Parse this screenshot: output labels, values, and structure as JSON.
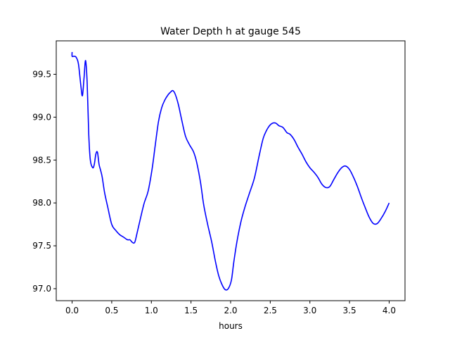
{
  "chart_data": {
    "type": "line",
    "title": "Water Depth h at gauge 545",
    "xlabel": "hours",
    "ylabel": "",
    "xlim": [
      -0.2,
      4.2
    ],
    "ylim": [
      96.86,
      99.89
    ],
    "xticks": [
      0.0,
      0.5,
      1.0,
      1.5,
      2.0,
      2.5,
      3.0,
      3.5,
      4.0
    ],
    "xtick_labels": [
      "0.0",
      "0.5",
      "1.0",
      "1.5",
      "2.0",
      "2.5",
      "3.0",
      "3.5",
      "4.0"
    ],
    "yticks": [
      97.0,
      97.5,
      98.0,
      98.5,
      99.0,
      99.5
    ],
    "ytick_labels": [
      "97.0",
      "97.5",
      "98.0",
      "98.5",
      "99.0",
      "99.5"
    ],
    "grid": false,
    "series": [
      {
        "color": "#0000ff",
        "x": [
          0.0,
          0.0,
          0.02,
          0.05,
          0.08,
          0.11,
          0.13,
          0.15,
          0.17,
          0.19,
          0.21,
          0.23,
          0.26,
          0.28,
          0.3,
          0.32,
          0.34,
          0.36,
          0.38,
          0.41,
          0.45,
          0.5,
          0.55,
          0.6,
          0.65,
          0.7,
          0.73,
          0.76,
          0.79,
          0.82,
          0.87,
          0.91,
          0.96,
          1.01,
          1.05,
          1.09,
          1.13,
          1.17,
          1.21,
          1.24,
          1.27,
          1.3,
          1.34,
          1.38,
          1.43,
          1.48,
          1.53,
          1.57,
          1.62,
          1.66,
          1.71,
          1.76,
          1.81,
          1.85,
          1.89,
          1.93,
          1.97,
          2.01,
          2.04,
          2.08,
          2.13,
          2.18,
          2.24,
          2.3,
          2.36,
          2.41,
          2.45,
          2.49,
          2.53,
          2.57,
          2.61,
          2.66,
          2.71,
          2.75,
          2.8,
          2.85,
          2.9,
          2.95,
          3.0,
          3.05,
          3.1,
          3.15,
          3.2,
          3.25,
          3.3,
          3.35,
          3.4,
          3.45,
          3.5,
          3.55,
          3.6,
          3.65,
          3.7,
          3.75,
          3.8,
          3.85,
          3.9,
          3.95,
          4.0
        ],
        "y": [
          99.76,
          99.71,
          99.71,
          99.7,
          99.62,
          99.37,
          99.25,
          99.45,
          99.66,
          99.4,
          98.8,
          98.5,
          98.41,
          98.45,
          98.57,
          98.59,
          98.45,
          98.38,
          98.3,
          98.12,
          97.95,
          97.75,
          97.68,
          97.63,
          97.6,
          97.57,
          97.57,
          97.54,
          97.54,
          97.65,
          97.85,
          98.0,
          98.14,
          98.4,
          98.68,
          98.95,
          99.11,
          99.2,
          99.26,
          99.29,
          99.31,
          99.27,
          99.15,
          98.98,
          98.78,
          98.68,
          98.6,
          98.48,
          98.24,
          97.98,
          97.75,
          97.55,
          97.31,
          97.15,
          97.05,
          96.99,
          97.0,
          97.1,
          97.31,
          97.55,
          97.78,
          97.95,
          98.12,
          98.29,
          98.55,
          98.75,
          98.84,
          98.9,
          98.93,
          98.93,
          98.9,
          98.88,
          98.82,
          98.8,
          98.74,
          98.65,
          98.57,
          98.48,
          98.41,
          98.36,
          98.3,
          98.22,
          98.18,
          98.19,
          98.27,
          98.35,
          98.41,
          98.43,
          98.39,
          98.3,
          98.19,
          98.06,
          97.94,
          97.83,
          97.76,
          97.76,
          97.82,
          97.9,
          98.0
        ]
      }
    ]
  }
}
